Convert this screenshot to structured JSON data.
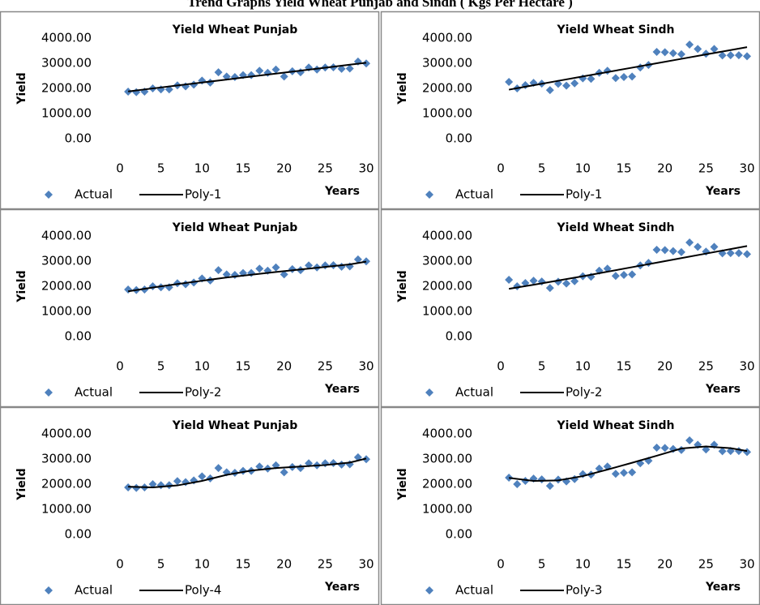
{
  "figure_title": "Trend Graphs Yield Wheat Punjab and Sindh ( Kgs Per Hectare )",
  "chart_data": [
    {
      "type": "scatter",
      "title": "Yield Wheat Punjab",
      "ylabel": "Yield",
      "xlabel": "Years",
      "x": [
        1,
        2,
        3,
        4,
        5,
        6,
        7,
        8,
        9,
        10,
        11,
        12,
        13,
        14,
        15,
        16,
        17,
        18,
        19,
        20,
        21,
        22,
        23,
        24,
        25,
        26,
        27,
        28,
        29,
        30
      ],
      "series": [
        {
          "name": "Actual",
          "color": "#4f81bd",
          "values": [
            1870,
            1850,
            1870,
            2000,
            1960,
            1960,
            2120,
            2080,
            2150,
            2310,
            2230,
            2640,
            2470,
            2450,
            2530,
            2530,
            2700,
            2620,
            2750,
            2470,
            2680,
            2640,
            2830,
            2750,
            2830,
            2840,
            2780,
            2790,
            3070,
            2990
          ]
        },
        {
          "name": "Poly-1",
          "color": "#000000",
          "x": [
            1,
            4,
            7,
            10,
            13,
            16,
            19,
            22,
            25,
            28,
            30
          ],
          "values": [
            1880,
            1998,
            2116,
            2234,
            2352,
            2470,
            2588,
            2706,
            2824,
            2942,
            3020
          ]
        }
      ],
      "xlim": [
        0,
        30
      ],
      "xticks": [
        0,
        5,
        10,
        15,
        20,
        25,
        30
      ],
      "ylim": [
        0,
        4000
      ],
      "yticks": [
        {
          "value": 0,
          "label": "0.00"
        },
        {
          "value": 1000,
          "label": "1000.00"
        },
        {
          "value": 2000,
          "label": "2000.00"
        },
        {
          "value": 3000,
          "label": "3000.00"
        },
        {
          "value": 4000,
          "label": "4000.00"
        }
      ]
    },
    {
      "type": "scatter",
      "title": "Yield Wheat Sindh",
      "ylabel": "Yield",
      "xlabel": "Years",
      "x": [
        1,
        2,
        3,
        4,
        5,
        6,
        7,
        8,
        9,
        10,
        11,
        12,
        13,
        14,
        15,
        16,
        17,
        18,
        19,
        20,
        21,
        22,
        23,
        24,
        25,
        26,
        27,
        28,
        29,
        30
      ],
      "series": [
        {
          "name": "Actual",
          "color": "#4f81bd",
          "values": [
            2260,
            2000,
            2130,
            2220,
            2190,
            1930,
            2180,
            2110,
            2200,
            2400,
            2380,
            2620,
            2700,
            2410,
            2450,
            2470,
            2830,
            2930,
            3450,
            3440,
            3400,
            3360,
            3740,
            3570,
            3380,
            3570,
            3310,
            3320,
            3320,
            3280
          ]
        },
        {
          "name": "Poly-1",
          "color": "#000000",
          "x": [
            1,
            4,
            7,
            10,
            13,
            16,
            19,
            22,
            25,
            28,
            30
          ],
          "values": [
            1950,
            2125,
            2300,
            2475,
            2650,
            2825,
            3000,
            3175,
            3350,
            3525,
            3640
          ]
        }
      ],
      "xlim": [
        0,
        30
      ],
      "xticks": [
        0,
        5,
        10,
        15,
        20,
        25,
        30
      ],
      "ylim": [
        0,
        4000
      ],
      "yticks": [
        {
          "value": 0,
          "label": "0.00"
        },
        {
          "value": 1000,
          "label": "1000.00"
        },
        {
          "value": 2000,
          "label": "2000.00"
        },
        {
          "value": 3000,
          "label": "3000.00"
        },
        {
          "value": 4000,
          "label": "4000.00"
        }
      ]
    },
    {
      "type": "scatter",
      "title": "Yield Wheat Punjab",
      "ylabel": "Yield",
      "xlabel": "Years",
      "x": [
        1,
        2,
        3,
        4,
        5,
        6,
        7,
        8,
        9,
        10,
        11,
        12,
        13,
        14,
        15,
        16,
        17,
        18,
        19,
        20,
        21,
        22,
        23,
        24,
        25,
        26,
        27,
        28,
        29,
        30
      ],
      "series": [
        {
          "name": "Actual",
          "color": "#4f81bd",
          "values": [
            1870,
            1850,
            1870,
            2000,
            1960,
            1960,
            2120,
            2080,
            2150,
            2310,
            2230,
            2640,
            2470,
            2450,
            2530,
            2530,
            2700,
            2620,
            2750,
            2470,
            2680,
            2640,
            2830,
            2750,
            2830,
            2840,
            2780,
            2790,
            3070,
            2990
          ]
        },
        {
          "name": "Poly-2",
          "color": "#000000",
          "x": [
            1,
            4,
            7,
            10,
            13,
            16,
            19,
            22,
            25,
            28,
            30
          ],
          "values": [
            1800,
            1950,
            2090,
            2220,
            2350,
            2460,
            2570,
            2670,
            2770,
            2870,
            2980
          ]
        }
      ],
      "xlim": [
        0,
        30
      ],
      "xticks": [
        0,
        5,
        10,
        15,
        20,
        25,
        30
      ],
      "ylim": [
        0,
        4000
      ],
      "yticks": [
        {
          "value": 0,
          "label": "0.00"
        },
        {
          "value": 1000,
          "label": "1000.00"
        },
        {
          "value": 2000,
          "label": "2000.00"
        },
        {
          "value": 3000,
          "label": "3000.00"
        },
        {
          "value": 4000,
          "label": "4000.00"
        }
      ]
    },
    {
      "type": "scatter",
      "title": "Yield Wheat Sindh",
      "ylabel": "Yield",
      "xlabel": "Years",
      "x": [
        1,
        2,
        3,
        4,
        5,
        6,
        7,
        8,
        9,
        10,
        11,
        12,
        13,
        14,
        15,
        16,
        17,
        18,
        19,
        20,
        21,
        22,
        23,
        24,
        25,
        26,
        27,
        28,
        29,
        30
      ],
      "series": [
        {
          "name": "Actual",
          "color": "#4f81bd",
          "values": [
            2260,
            2000,
            2130,
            2220,
            2190,
            1930,
            2180,
            2110,
            2200,
            2400,
            2380,
            2620,
            2700,
            2410,
            2450,
            2470,
            2830,
            2930,
            3450,
            3440,
            3400,
            3360,
            3740,
            3570,
            3380,
            3570,
            3310,
            3320,
            3320,
            3280
          ]
        },
        {
          "name": "Poly-2",
          "color": "#000000",
          "x": [
            1,
            4,
            7,
            10,
            13,
            16,
            19,
            22,
            25,
            28,
            30
          ],
          "values": [
            1900,
            2060,
            2230,
            2400,
            2580,
            2760,
            2940,
            3120,
            3300,
            3480,
            3600
          ]
        }
      ],
      "xlim": [
        0,
        30
      ],
      "xticks": [
        0,
        5,
        10,
        15,
        20,
        25,
        30
      ],
      "ylim": [
        0,
        4000
      ],
      "yticks": [
        {
          "value": 0,
          "label": "0.00"
        },
        {
          "value": 1000,
          "label": "1000.00"
        },
        {
          "value": 2000,
          "label": "2000.00"
        },
        {
          "value": 3000,
          "label": "3000.00"
        },
        {
          "value": 4000,
          "label": "4000.00"
        }
      ]
    },
    {
      "type": "scatter",
      "title": "Yield Wheat Punjab",
      "ylabel": "Yield",
      "xlabel": "Years",
      "x": [
        1,
        2,
        3,
        4,
        5,
        6,
        7,
        8,
        9,
        10,
        11,
        12,
        13,
        14,
        15,
        16,
        17,
        18,
        19,
        20,
        21,
        22,
        23,
        24,
        25,
        26,
        27,
        28,
        29,
        30
      ],
      "series": [
        {
          "name": "Actual",
          "color": "#4f81bd",
          "values": [
            1870,
            1850,
            1870,
            2000,
            1960,
            1960,
            2120,
            2080,
            2150,
            2310,
            2230,
            2640,
            2470,
            2450,
            2530,
            2530,
            2700,
            2620,
            2750,
            2470,
            2680,
            2640,
            2830,
            2750,
            2830,
            2840,
            2780,
            2790,
            3070,
            2990
          ]
        },
        {
          "name": "Poly-4",
          "color": "#000000",
          "x": [
            1,
            4,
            7,
            10,
            13,
            16,
            19,
            22,
            25,
            28,
            30
          ],
          "values": [
            1900,
            1870,
            1950,
            2130,
            2370,
            2540,
            2640,
            2700,
            2760,
            2860,
            3020
          ]
        }
      ],
      "xlim": [
        0,
        30
      ],
      "xticks": [
        0,
        5,
        10,
        15,
        20,
        25,
        30
      ],
      "ylim": [
        0,
        4000
      ],
      "yticks": [
        {
          "value": 0,
          "label": "0.00"
        },
        {
          "value": 1000,
          "label": "1000.00"
        },
        {
          "value": 2000,
          "label": "2000.00"
        },
        {
          "value": 3000,
          "label": "3000.00"
        },
        {
          "value": 4000,
          "label": "4000.00"
        }
      ]
    },
    {
      "type": "scatter",
      "title": "Yield Wheat Sindh",
      "ylabel": "Yield",
      "xlabel": "Years",
      "x": [
        1,
        2,
        3,
        4,
        5,
        6,
        7,
        8,
        9,
        10,
        11,
        12,
        13,
        14,
        15,
        16,
        17,
        18,
        19,
        20,
        21,
        22,
        23,
        24,
        25,
        26,
        27,
        28,
        29,
        30
      ],
      "series": [
        {
          "name": "Actual",
          "color": "#4f81bd",
          "values": [
            2260,
            2000,
            2130,
            2220,
            2190,
            1930,
            2180,
            2110,
            2200,
            2400,
            2380,
            2620,
            2700,
            2410,
            2450,
            2470,
            2830,
            2930,
            3450,
            3440,
            3400,
            3360,
            3740,
            3570,
            3380,
            3570,
            3310,
            3320,
            3320,
            3280
          ]
        },
        {
          "name": "Poly-3",
          "color": "#000000",
          "x": [
            1,
            4,
            7,
            10,
            13,
            16,
            19,
            22,
            25,
            28,
            30
          ],
          "values": [
            2250,
            2130,
            2150,
            2320,
            2580,
            2850,
            3130,
            3420,
            3500,
            3430,
            3320
          ]
        }
      ],
      "xlim": [
        0,
        30
      ],
      "xticks": [
        0,
        5,
        10,
        15,
        20,
        25,
        30
      ],
      "ylim": [
        0,
        4000
      ],
      "yticks": [
        {
          "value": 0,
          "label": "0.00"
        },
        {
          "value": 1000,
          "label": "1000.00"
        },
        {
          "value": 2000,
          "label": "2000.00"
        },
        {
          "value": 3000,
          "label": "3000.00"
        },
        {
          "value": 4000,
          "label": "4000.00"
        }
      ]
    }
  ]
}
